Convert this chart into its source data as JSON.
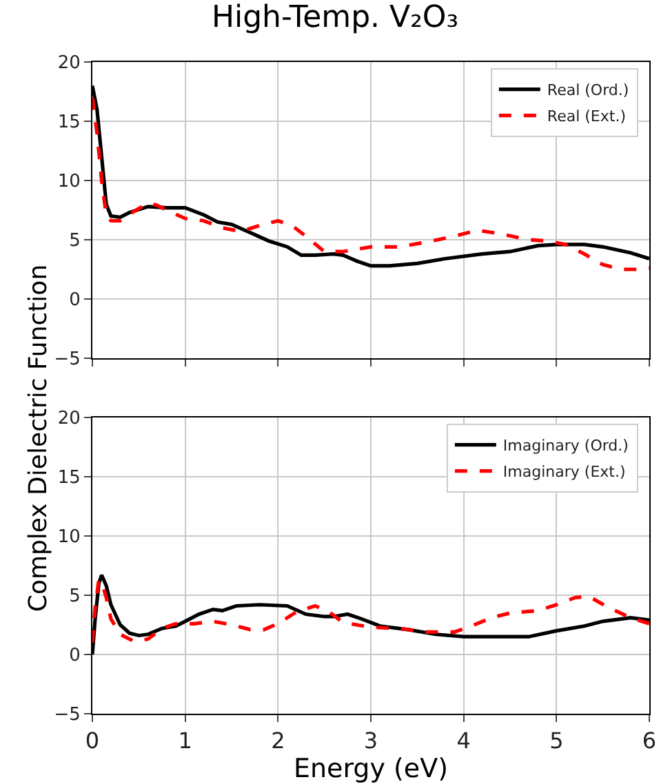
{
  "chart_data": [
    {
      "type": "line",
      "title": "High-Temp. V₂O₃",
      "ylabel": "Complex Dielectric Function",
      "xlim": [
        0,
        6
      ],
      "xticks": [
        0,
        1,
        2,
        3,
        4,
        5,
        6
      ],
      "ylim": [
        -5,
        20
      ],
      "yticks": [
        -5,
        0,
        5,
        10,
        15,
        20
      ],
      "tick_labels": "y",
      "grid": true,
      "legend": "top right",
      "series": [
        {
          "name": "Real (Ord.)",
          "color": "#000000",
          "line_style": "solid",
          "x": [
            0,
            0.05,
            0.1,
            0.15,
            0.2,
            0.3,
            0.4,
            0.6,
            0.8,
            1.0,
            1.2,
            1.35,
            1.5,
            1.7,
            1.9,
            2.1,
            2.25,
            2.4,
            2.6,
            2.7,
            2.85,
            3.0,
            3.2,
            3.5,
            3.8,
            4.2,
            4.5,
            4.8,
            5.0,
            5.3,
            5.5,
            5.8,
            6.0
          ],
          "values": [
            18,
            16,
            12,
            8,
            7,
            6.9,
            7.3,
            7.8,
            7.7,
            7.7,
            7.1,
            6.5,
            6.3,
            5.6,
            4.9,
            4.4,
            3.7,
            3.7,
            3.8,
            3.7,
            3.2,
            2.8,
            2.8,
            3.0,
            3.4,
            3.8,
            4.0,
            4.5,
            4.6,
            4.6,
            4.4,
            3.9,
            3.4
          ]
        },
        {
          "name": "Real (Ext.)",
          "color": "#ff0000",
          "line_style": "dashed",
          "x": [
            0,
            0.05,
            0.1,
            0.15,
            0.2,
            0.3,
            0.45,
            0.6,
            0.7,
            0.8,
            1.0,
            1.2,
            1.4,
            1.6,
            1.8,
            2.0,
            2.15,
            2.3,
            2.5,
            2.7,
            3.0,
            3.3,
            3.6,
            3.9,
            4.15,
            4.4,
            4.7,
            4.9,
            5.1,
            5.3,
            5.5,
            5.7,
            5.9,
            6.0
          ],
          "values": [
            17,
            14,
            10,
            7,
            6.6,
            6.6,
            7.4,
            8.1,
            7.9,
            7.5,
            6.8,
            6.6,
            6.0,
            5.7,
            6.2,
            6.6,
            6.2,
            5.3,
            4.0,
            4.0,
            4.4,
            4.4,
            4.8,
            5.3,
            5.8,
            5.5,
            5.0,
            4.9,
            4.6,
            3.8,
            2.9,
            2.5,
            2.5,
            2.6
          ]
        }
      ]
    },
    {
      "type": "line",
      "xlabel": "Energy (eV)",
      "xlim": [
        0,
        6
      ],
      "xticks": [
        0,
        1,
        2,
        3,
        4,
        5,
        6
      ],
      "ylim": [
        -5,
        20
      ],
      "yticks": [
        -5,
        0,
        5,
        10,
        15,
        20
      ],
      "grid": true,
      "legend": "top right",
      "series": [
        {
          "name": "Imaginary (Ord.)",
          "color": "#000000",
          "line_style": "solid",
          "x": [
            0,
            0.03,
            0.07,
            0.1,
            0.15,
            0.2,
            0.3,
            0.4,
            0.5,
            0.6,
            0.75,
            0.9,
            1.0,
            1.15,
            1.3,
            1.4,
            1.55,
            1.8,
            2.1,
            2.3,
            2.5,
            2.6,
            2.75,
            2.9,
            3.1,
            3.4,
            3.7,
            4.0,
            4.3,
            4.7,
            5.0,
            5.3,
            5.5,
            5.8,
            6.0
          ],
          "values": [
            0,
            3,
            6,
            6.7,
            5.8,
            4.2,
            2.5,
            1.8,
            1.6,
            1.7,
            2.2,
            2.4,
            2.8,
            3.4,
            3.8,
            3.7,
            4.1,
            4.2,
            4.1,
            3.4,
            3.2,
            3.2,
            3.4,
            3.0,
            2.4,
            2.1,
            1.7,
            1.5,
            1.5,
            1.5,
            2.0,
            2.4,
            2.8,
            3.1,
            2.9
          ]
        },
        {
          "name": "Imaginary (Ext.)",
          "color": "#ff0000",
          "line_style": "dashed",
          "x": [
            0,
            0.03,
            0.07,
            0.1,
            0.15,
            0.2,
            0.3,
            0.45,
            0.6,
            0.75,
            0.9,
            1.1,
            1.3,
            1.5,
            1.7,
            1.85,
            2.0,
            2.2,
            2.4,
            2.55,
            2.7,
            3.0,
            3.3,
            3.6,
            3.9,
            4.05,
            4.3,
            4.5,
            4.8,
            5.0,
            5.2,
            5.35,
            5.55,
            5.8,
            6.0
          ],
          "values": [
            1,
            4,
            6.3,
            6.1,
            4.8,
            3,
            1.7,
            1.1,
            1.3,
            2.2,
            2.6,
            2.6,
            2.8,
            2.5,
            2.1,
            2.1,
            2.6,
            3.6,
            4.1,
            3.6,
            2.7,
            2.3,
            2.2,
            1.9,
            1.9,
            2.3,
            3.1,
            3.5,
            3.7,
            4.2,
            4.8,
            4.9,
            4.0,
            3.1,
            2.6
          ]
        }
      ]
    }
  ]
}
